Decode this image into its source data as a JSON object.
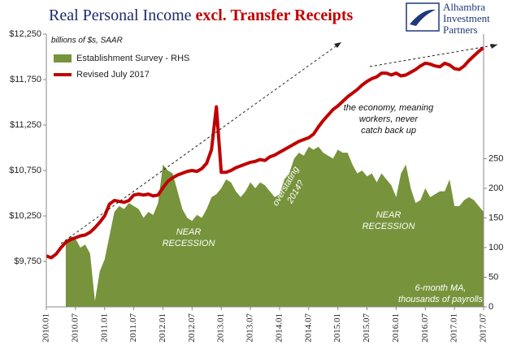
{
  "chart_data": {
    "type": "line",
    "title": [
      "Real Personal Income",
      "excl. Transfer Receipts"
    ],
    "subtitle": "billions of $s, SAAR",
    "logo": [
      "Alhambra",
      "Investment",
      "Partners"
    ],
    "annotations": {
      "recession1": [
        "NEAR",
        "RECESSION"
      ],
      "recession2": [
        "NEAR",
        "RECESSION"
      ],
      "overstating": [
        "overstating",
        "2014?"
      ],
      "economy": [
        "the economy, meaning",
        "workers, never",
        "catch back up"
      ],
      "ma": [
        "6-month MA,",
        "thousands of payrolls"
      ]
    },
    "categories": [
      "2010.01",
      null,
      null,
      null,
      null,
      null,
      "2010.07",
      null,
      null,
      null,
      null,
      null,
      "2011.01",
      null,
      null,
      null,
      null,
      null,
      "2011.07",
      null,
      null,
      null,
      null,
      null,
      "2012.01",
      null,
      null,
      null,
      null,
      null,
      "2012.07",
      null,
      null,
      null,
      null,
      null,
      "2013.01",
      null,
      null,
      null,
      null,
      null,
      "2013.07",
      null,
      null,
      null,
      null,
      null,
      "2014.01",
      null,
      null,
      null,
      null,
      null,
      "2014.07",
      null,
      null,
      null,
      null,
      null,
      "2015.01",
      null,
      null,
      null,
      null,
      null,
      "2015.07",
      null,
      null,
      null,
      null,
      null,
      "2016.01",
      null,
      null,
      null,
      null,
      null,
      "2016.07",
      null,
      null,
      null,
      null,
      null,
      "2017.01",
      null,
      null,
      null,
      null,
      null,
      "2017.07"
    ],
    "series": [
      {
        "name": "Establishment Survey - RHS",
        "type": "area",
        "axis": "y2",
        "color": "#77933c",
        "values": [
          null,
          null,
          null,
          null,
          110,
          120,
          115,
          100,
          105,
          90,
          10,
          60,
          80,
          120,
          160,
          170,
          165,
          175,
          170,
          165,
          150,
          160,
          155,
          175,
          240,
          230,
          225,
          195,
          165,
          150,
          145,
          155,
          150,
          165,
          185,
          190,
          200,
          215,
          210,
          195,
          185,
          195,
          210,
          200,
          210,
          205,
          195,
          185,
          190,
          215,
          225,
          250,
          260,
          255,
          270,
          265,
          270,
          260,
          255,
          250,
          265,
          260,
          260,
          240,
          225,
          230,
          220,
          225,
          210,
          225,
          215,
          205,
          185,
          225,
          240,
          200,
          175,
          180,
          200,
          185,
          190,
          195,
          195,
          215,
          170,
          170,
          180,
          185,
          180,
          170,
          160
        ]
      },
      {
        "name": "Revised July 2017",
        "type": "line",
        "color": "#c00000",
        "values": [
          9810,
          9790,
          9830,
          9900,
          9960,
          9990,
          10010,
          10030,
          10040,
          10070,
          10120,
          10180,
          10250,
          10380,
          10420,
          10410,
          10400,
          10420,
          10480,
          10490,
          10480,
          10490,
          10470,
          10480,
          10560,
          10630,
          10670,
          10700,
          10720,
          10740,
          10750,
          10740,
          10770,
          10830,
          10980,
          11450,
          10730,
          10730,
          10750,
          10780,
          10800,
          10820,
          10840,
          10850,
          10870,
          10860,
          10900,
          10920,
          10950,
          10980,
          11010,
          11040,
          11070,
          11090,
          11110,
          11150,
          11230,
          11300,
          11360,
          11420,
          11460,
          11510,
          11560,
          11600,
          11640,
          11690,
          11730,
          11760,
          11780,
          11820,
          11820,
          11800,
          11820,
          11790,
          11800,
          11830,
          11860,
          11900,
          11930,
          11920,
          11900,
          11890,
          11930,
          11910,
          11870,
          11860,
          11900,
          11960,
          12010,
          12060,
          12100
        ]
      }
    ],
    "ylim": [
      9250,
      12250
    ],
    "yticks": [
      {
        "value": 9750,
        "label": "$9,750"
      },
      {
        "value": 10250,
        "label": "$10,250"
      },
      {
        "value": 10750,
        "label": "$10,750"
      },
      {
        "value": 11250,
        "label": "$11,250"
      },
      {
        "value": 11750,
        "label": "$11,750"
      },
      {
        "value": 12250,
        "label": "$12,250"
      }
    ],
    "y2lim": [
      0,
      460
    ],
    "y2ticks": [
      0,
      50,
      100,
      150,
      200,
      250
    ],
    "legend": "upper left"
  }
}
